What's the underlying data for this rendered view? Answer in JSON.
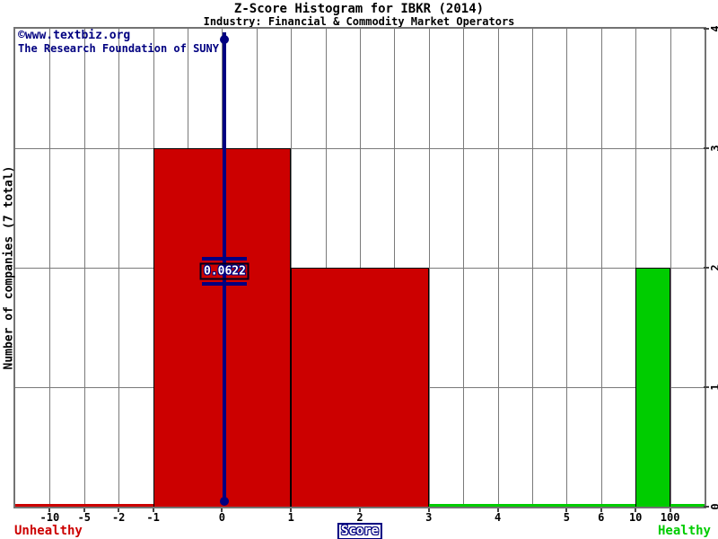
{
  "title": "Z-Score Histogram for IBKR (2014)",
  "subtitle": "Industry: Financial & Commodity Market Operators",
  "watermark": {
    "line1": "©www.textbiz.org",
    "line2": "The Research Foundation of SUNY"
  },
  "y_axis": {
    "label": "Number of companies (7 total)",
    "max": 4,
    "ticks": [
      0,
      1,
      2,
      3,
      4
    ]
  },
  "x_axis": {
    "label": "Score",
    "total_slots": 20,
    "ticks": [
      {
        "label": "-10",
        "slot": 1
      },
      {
        "label": "-5",
        "slot": 2
      },
      {
        "label": "-2",
        "slot": 3
      },
      {
        "label": "-1",
        "slot": 4
      },
      {
        "label": "0",
        "slot": 6
      },
      {
        "label": "1",
        "slot": 8
      },
      {
        "label": "2",
        "slot": 10
      },
      {
        "label": "3",
        "slot": 12
      },
      {
        "label": "4",
        "slot": 14
      },
      {
        "label": "5",
        "slot": 16
      },
      {
        "label": "6",
        "slot": 17
      },
      {
        "label": "10",
        "slot": 18
      },
      {
        "label": "100",
        "slot": 19
      }
    ]
  },
  "footer": {
    "left_label": "Unhealthy",
    "center_label": "Score",
    "right_label": "Healthy"
  },
  "colors": {
    "unhealthy_red": "#cc0000",
    "healthy_green": "#00cc00",
    "marker_navy": "#000080",
    "grid_gray": "#7a7a7a",
    "bar_outline": "#000000"
  },
  "chart_data": {
    "type": "bar",
    "title": "Z-Score Histogram for IBKR (2014)",
    "subtitle": "Industry: Financial & Commodity Market Operators",
    "xlabel": "Score",
    "ylabel": "Number of companies (7 total)",
    "ylim": [
      0,
      4
    ],
    "grid": true,
    "total_companies": 7,
    "x_tick_labels": [
      "-10",
      "-5",
      "-2",
      "-1",
      "0",
      "1",
      "2",
      "3",
      "4",
      "5",
      "6",
      "10",
      "100"
    ],
    "y_tick_labels": [
      "0",
      "1",
      "2",
      "3",
      "4"
    ],
    "bars": [
      {
        "x_from": -1,
        "x_to": 1,
        "from_slot": 4,
        "to_slot": 8,
        "count": 3,
        "color": "#cc0000",
        "zone": "unhealthy"
      },
      {
        "x_from": 1,
        "x_to": 3,
        "from_slot": 8,
        "to_slot": 12,
        "count": 2,
        "color": "#cc0000",
        "zone": "unhealthy"
      },
      {
        "x_from": 10,
        "x_to": 100,
        "from_slot": 18,
        "to_slot": 19,
        "count": 2,
        "color": "#00cc00",
        "zone": "healthy"
      }
    ],
    "axis_zones": [
      {
        "name": "unhealthy",
        "from_slot": 0,
        "to_slot": 4,
        "color": "#cc0000"
      },
      {
        "name": "healthy",
        "from_slot": 12,
        "to_slot": 20,
        "color": "#00cc00"
      }
    ],
    "marker": {
      "value": 0.0622,
      "label": "0.0622",
      "slot": 6.08,
      "color": "#000080"
    },
    "annotations": {
      "left": "Unhealthy",
      "right": "Healthy"
    }
  }
}
